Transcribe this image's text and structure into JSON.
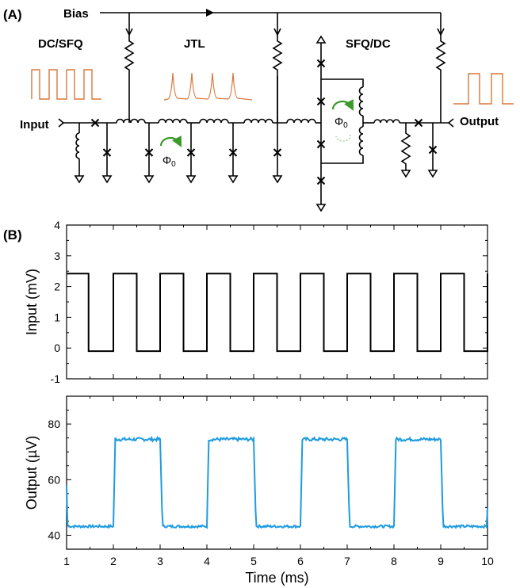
{
  "panel_a": {
    "label": "(A)",
    "bias": "Bias",
    "dcsfq": "DC/SFQ",
    "jtl": "JTL",
    "sfqdc": "SFQ/DC",
    "input": "Input",
    "output": "Output",
    "phi_main": "Φ",
    "phi_sub": "0",
    "colors": {
      "orange": "#d9773a",
      "green": "#3a9a2a",
      "black": "#000000"
    }
  },
  "panel_b": {
    "label": "(B)"
  },
  "chart_data": [
    {
      "type": "line",
      "ylabel": "Input (mV)",
      "xlim": [
        1,
        10
      ],
      "ylim": [
        -1,
        4
      ],
      "yticks": [
        -1,
        0,
        1,
        2,
        3,
        4
      ],
      "series": [
        {
          "color": "#000000",
          "period": 1,
          "duty": 0.5,
          "high": 2.42,
          "low": -0.1,
          "first_fall": 1.47,
          "first_rise": 2.0
        }
      ]
    },
    {
      "type": "line",
      "xlabel": "Time (ms)",
      "ylabel": "Output (µV)",
      "xlim": [
        1,
        10
      ],
      "ylim": [
        35,
        90
      ],
      "xticks": [
        1,
        2,
        3,
        4,
        5,
        6,
        7,
        8,
        9,
        10
      ],
      "yticks": [
        40,
        60,
        80
      ],
      "series": [
        {
          "color": "#1e9be0",
          "period": 2,
          "high": 74.5,
          "low": 43.2,
          "rise_times": [
            2.0,
            4.0,
            6.0,
            8.0
          ],
          "fall_times": [
            3.0,
            5.0,
            7.0,
            9.0
          ]
        }
      ]
    }
  ]
}
